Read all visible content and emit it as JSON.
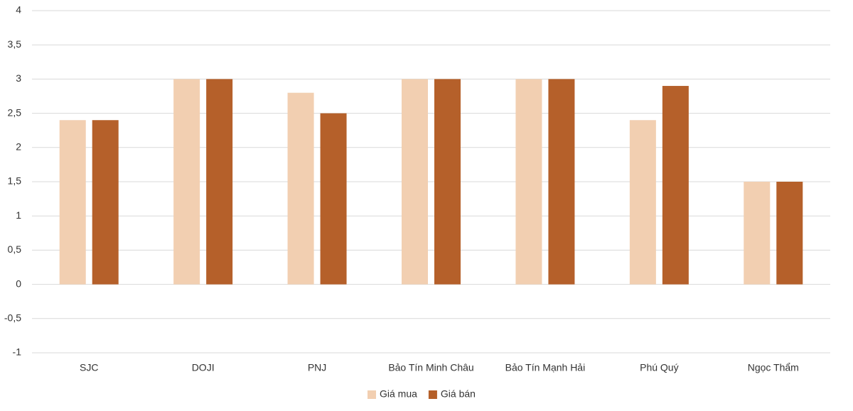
{
  "chart_data": {
    "type": "bar",
    "categories": [
      "SJC",
      "DOJI",
      "PNJ",
      "Bảo Tín Minh Châu",
      "Bảo Tín Mạnh Hải",
      "Phú Quý",
      "Ngọc Thẩm"
    ],
    "series": [
      {
        "name": "Giá mua",
        "color": "#f2cfb1",
        "values": [
          2.4,
          3,
          2.8,
          3,
          3,
          2.4,
          1.5
        ]
      },
      {
        "name": "Giá bán",
        "color": "#b5602a",
        "values": [
          2.4,
          3,
          2.5,
          3,
          3,
          2.9,
          1.5
        ]
      }
    ],
    "ylim": [
      -1,
      4
    ],
    "yticks": [
      -1,
      {
        "value": -0.5,
        "label": "-0,5"
      },
      0,
      {
        "value": 0.5,
        "label": "0,5"
      },
      1,
      {
        "value": 1.5,
        "label": "1,5"
      },
      2,
      {
        "value": 2.5,
        "label": "2,5"
      },
      3,
      {
        "value": 3.5,
        "label": "3,5"
      },
      4
    ],
    "grid": true,
    "legend": "bottom"
  }
}
